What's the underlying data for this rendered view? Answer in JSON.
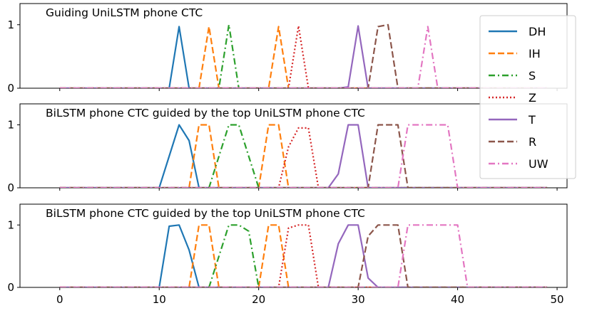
{
  "chart_data": [
    {
      "type": "line",
      "title": "Guiding UniLSTM phone CTC",
      "xlim": [
        -4,
        51
      ],
      "ylim": [
        0,
        1
      ],
      "yticks": [
        0,
        1
      ],
      "series": [
        {
          "name": "DH",
          "color": "#1f77b4",
          "dash": "solid",
          "x": [
            0,
            11,
            12,
            13,
            49
          ],
          "y": [
            0,
            0,
            0.97,
            0,
            0
          ]
        },
        {
          "name": "IH",
          "color": "#ff7f0e",
          "dash": "dashed",
          "x": [
            0,
            14,
            15,
            16,
            21,
            22,
            23,
            49
          ],
          "y": [
            0,
            0,
            0.97,
            0,
            0,
            0.97,
            0,
            0
          ]
        },
        {
          "name": "S",
          "color": "#2ca02c",
          "dash": "dashdot",
          "x": [
            0,
            16,
            17,
            18,
            49
          ],
          "y": [
            0,
            0,
            1,
            0,
            0
          ]
        },
        {
          "name": "Z",
          "color": "#d62728",
          "dash": "dotted",
          "x": [
            0,
            23,
            24,
            25,
            49
          ],
          "y": [
            0,
            0,
            0.98,
            0,
            0
          ]
        },
        {
          "name": "T",
          "color": "#9467bd",
          "dash": "solid",
          "x": [
            0,
            28,
            29,
            30,
            31,
            49
          ],
          "y": [
            0,
            0,
            0.02,
            0.98,
            0,
            0
          ]
        },
        {
          "name": "R",
          "color": "#8c564b",
          "dash": "dashed",
          "x": [
            0,
            31,
            32,
            33,
            34,
            49
          ],
          "y": [
            0,
            0,
            0.97,
            1,
            0,
            0
          ]
        },
        {
          "name": "UW",
          "color": "#e377c2",
          "dash": "dashdot",
          "x": [
            0,
            36,
            37,
            38,
            49
          ],
          "y": [
            0,
            0,
            0.97,
            0,
            0
          ]
        }
      ]
    },
    {
      "type": "line",
      "title": "BiLSTM phone CTC guided by the top UniLSTM phone CTC",
      "xlim": [
        -4,
        51
      ],
      "ylim": [
        0,
        1
      ],
      "yticks": [
        0,
        1
      ],
      "series": [
        {
          "name": "DH",
          "color": "#1f77b4",
          "dash": "solid",
          "x": [
            0,
            10,
            12,
            13,
            14,
            49
          ],
          "y": [
            0,
            0,
            1,
            0.75,
            0,
            0
          ]
        },
        {
          "name": "IH",
          "color": "#ff7f0e",
          "dash": "dashed",
          "x": [
            0,
            13,
            14,
            15,
            16,
            20,
            21,
            22,
            23,
            49
          ],
          "y": [
            0,
            0,
            1,
            1,
            0,
            0,
            1,
            1,
            0,
            0
          ]
        },
        {
          "name": "S",
          "color": "#2ca02c",
          "dash": "dashdot",
          "x": [
            0,
            15,
            17,
            18,
            20,
            49
          ],
          "y": [
            0,
            0,
            1,
            1,
            0,
            0
          ]
        },
        {
          "name": "Z",
          "color": "#d62728",
          "dash": "dotted",
          "x": [
            0,
            22,
            23,
            24,
            25,
            26,
            49
          ],
          "y": [
            0,
            0,
            0.65,
            0.95,
            0.95,
            0,
            0
          ]
        },
        {
          "name": "T",
          "color": "#9467bd",
          "dash": "solid",
          "x": [
            0,
            27,
            28,
            29,
            30,
            31,
            49
          ],
          "y": [
            0,
            0,
            0.22,
            1,
            1,
            0,
            0
          ]
        },
        {
          "name": "R",
          "color": "#8c564b",
          "dash": "dashed",
          "x": [
            0,
            31,
            32,
            34,
            35,
            49
          ],
          "y": [
            0,
            0,
            1,
            1,
            0,
            0
          ]
        },
        {
          "name": "UW",
          "color": "#e377c2",
          "dash": "dashdot",
          "x": [
            0,
            34,
            35,
            39,
            40,
            49
          ],
          "y": [
            0,
            0,
            1,
            1,
            0,
            0
          ]
        }
      ]
    },
    {
      "type": "line",
      "title": "BiLSTM phone CTC guided by the top UniLSTM phone CTC",
      "xlim": [
        -4,
        51
      ],
      "ylim": [
        0,
        1
      ],
      "yticks": [
        0,
        1
      ],
      "xticks": [
        0,
        10,
        20,
        30,
        40,
        50
      ],
      "series": [
        {
          "name": "DH",
          "color": "#1f77b4",
          "dash": "solid",
          "x": [
            0,
            10,
            11,
            12,
            13,
            14,
            49
          ],
          "y": [
            0,
            0,
            0.98,
            1,
            0.6,
            0,
            0
          ]
        },
        {
          "name": "IH",
          "color": "#ff7f0e",
          "dash": "dashed",
          "x": [
            0,
            13,
            14,
            15,
            16,
            20,
            21,
            22,
            23,
            49
          ],
          "y": [
            0,
            0,
            1,
            1,
            0,
            0,
            1,
            1,
            0,
            0
          ]
        },
        {
          "name": "S",
          "color": "#2ca02c",
          "dash": "dashdot",
          "x": [
            0,
            15,
            17,
            18,
            19,
            20,
            49
          ],
          "y": [
            0,
            0,
            1,
            1,
            0.9,
            0,
            0
          ]
        },
        {
          "name": "Z",
          "color": "#d62728",
          "dash": "dotted",
          "x": [
            0,
            22,
            23,
            24,
            25,
            26,
            49
          ],
          "y": [
            0,
            0,
            0.95,
            1,
            1,
            0,
            0
          ]
        },
        {
          "name": "T",
          "color": "#9467bd",
          "dash": "solid",
          "x": [
            0,
            27,
            28,
            29,
            30,
            31,
            32,
            49
          ],
          "y": [
            0,
            0,
            0.7,
            1,
            1,
            0.15,
            0,
            0
          ]
        },
        {
          "name": "R",
          "color": "#8c564b",
          "dash": "dashed",
          "x": [
            0,
            30,
            31,
            32,
            34,
            35,
            49
          ],
          "y": [
            0,
            0,
            0.82,
            1,
            1,
            0,
            0
          ]
        },
        {
          "name": "UW",
          "color": "#e377c2",
          "dash": "dashdot",
          "x": [
            0,
            34,
            35,
            40,
            41,
            49
          ],
          "y": [
            0,
            0,
            1,
            1,
            0,
            0
          ]
        }
      ]
    }
  ],
  "legend": {
    "placement": "right",
    "entries": [
      {
        "label": "DH",
        "color": "#1f77b4",
        "dash": "solid"
      },
      {
        "label": "IH",
        "color": "#ff7f0e",
        "dash": "dashed"
      },
      {
        "label": "S",
        "color": "#2ca02c",
        "dash": "dashdot"
      },
      {
        "label": "Z",
        "color": "#d62728",
        "dash": "dotted"
      },
      {
        "label": "T",
        "color": "#9467bd",
        "dash": "solid"
      },
      {
        "label": "R",
        "color": "#8c564b",
        "dash": "dashed"
      },
      {
        "label": "UW",
        "color": "#e377c2",
        "dash": "dashdot"
      }
    ]
  }
}
